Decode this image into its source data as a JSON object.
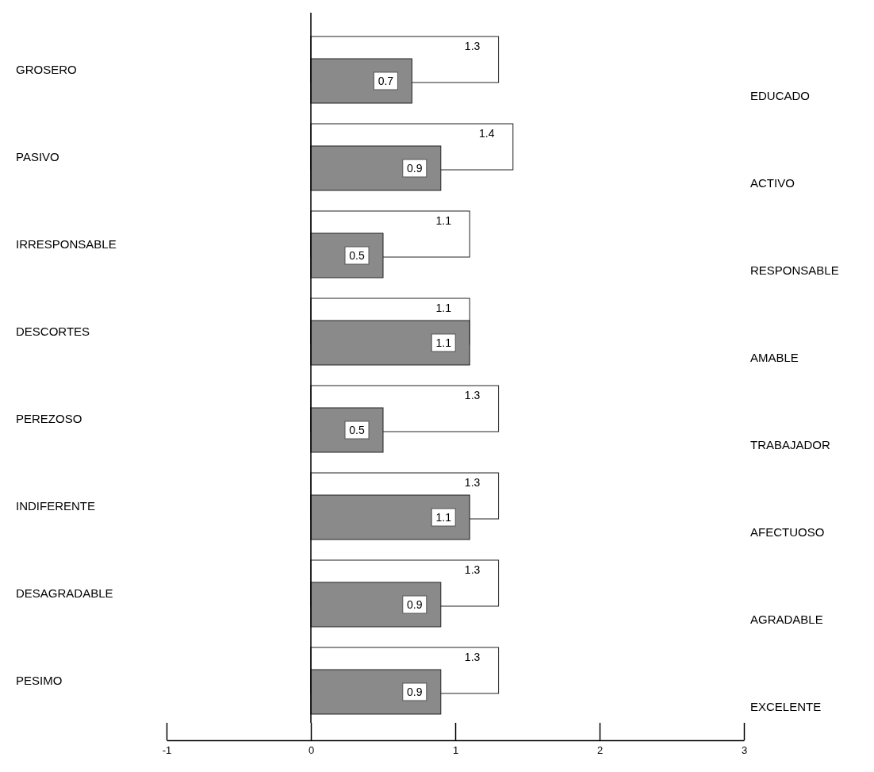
{
  "chart_data": {
    "type": "bar",
    "orientation": "horizontal",
    "categories": [
      "GROSERO",
      "PASIVO",
      "IRRESPONSABLE",
      "DESCORTES",
      "PEREZOSO",
      "INDIFERENTE",
      "DESAGRADABLE",
      "PESIMO"
    ],
    "y2_categories": [
      "EDUCADO",
      "ACTIVO",
      "RESPONSABLE",
      "AMABLE",
      "TRABAJADOR",
      "AFECTUOSO",
      "AGRADABLE",
      "EXCELENTE"
    ],
    "series": [
      {
        "color": "#ffffff",
        "values": [
          1.3,
          1.4,
          1.1,
          1.1,
          1.3,
          1.3,
          1.3,
          1.3
        ]
      },
      {
        "color": "#8a8a8a",
        "values": [
          0.7,
          0.9,
          0.5,
          1.1,
          0.5,
          1.1,
          0.9,
          0.9
        ]
      }
    ],
    "xlim": [
      -1,
      3
    ],
    "xticks": [
      -1,
      0,
      1,
      2,
      3
    ],
    "data_labels": true
  }
}
